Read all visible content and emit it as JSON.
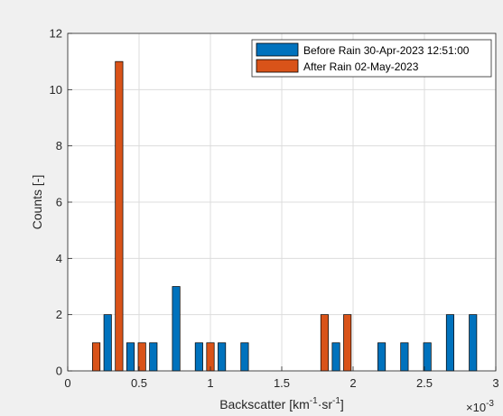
{
  "chart_data": {
    "type": "bar",
    "xlabel": "Backscatter [km-1·sr-1]",
    "ylabel": "Counts [-]",
    "x_exponent_label": "×10-3",
    "xlim": [
      0,
      3
    ],
    "ylim": [
      0,
      12
    ],
    "x_ticks": [
      "0",
      "0.5",
      "1",
      "1.5",
      "2",
      "2.5",
      "3"
    ],
    "y_ticks": [
      "0",
      "2",
      "4",
      "6",
      "8",
      "10",
      "12"
    ],
    "grid": true,
    "legend_position": "top-right",
    "series": [
      {
        "name": "Before Rain 30-Apr-2023 12:51:00",
        "color": "#0072BD",
        "x": [
          0.28,
          0.44,
          0.6,
          0.76,
          0.92,
          1.08,
          1.24,
          1.88,
          2.2,
          2.36,
          2.52,
          2.68,
          2.84
        ],
        "values": [
          2,
          1,
          1,
          3,
          1,
          1,
          1,
          1,
          1,
          1,
          1,
          2,
          2
        ]
      },
      {
        "name": "After Rain 02-May-2023",
        "color": "#D95319",
        "x": [
          0.2,
          0.36,
          0.52,
          1.0,
          1.8,
          1.96
        ],
        "values": [
          1,
          11,
          1,
          1,
          2,
          2
        ]
      }
    ]
  }
}
